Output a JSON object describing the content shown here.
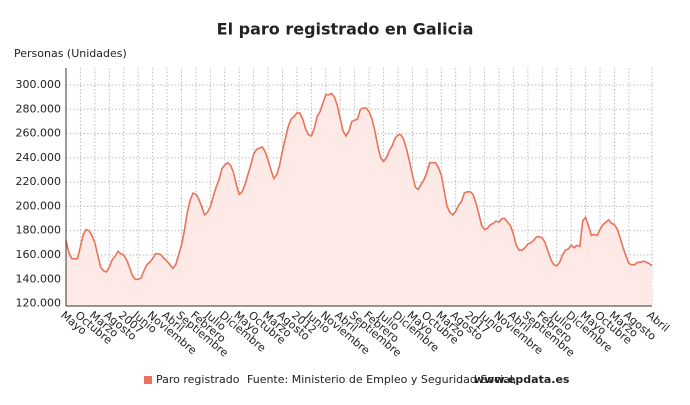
{
  "chart_data": {
    "type": "line",
    "title": "El paro registrado en Galicia",
    "y_axis_title": "Personas (Unidades)",
    "source": "Fuente: Ministerio de Empleo y Seguridad Social,",
    "source_site": "www.epdata.es",
    "grid": true,
    "ylim": [
      118000,
      314000
    ],
    "yticks": [
      {
        "value": 120000,
        "label": "120.000"
      },
      {
        "value": 140000,
        "label": "140.000"
      },
      {
        "value": 160000,
        "label": "160.000"
      },
      {
        "value": 180000,
        "label": "180.000"
      },
      {
        "value": 200000,
        "label": "200.000"
      },
      {
        "value": 220000,
        "label": "220.000"
      },
      {
        "value": 240000,
        "label": "240.000"
      },
      {
        "value": 260000,
        "label": "260.000"
      },
      {
        "value": 280000,
        "label": "280.000"
      },
      {
        "value": 300000,
        "label": "300.000"
      }
    ],
    "categories": [
      "Mayo",
      null,
      null,
      null,
      null,
      "Octubre",
      null,
      null,
      null,
      null,
      "Marzo",
      null,
      null,
      null,
      null,
      "Agosto",
      null,
      null,
      null,
      null,
      "2007",
      null,
      null,
      null,
      null,
      "Junio",
      null,
      null,
      null,
      null,
      "Noviembre",
      null,
      null,
      null,
      null,
      "Abril",
      null,
      null,
      null,
      null,
      "Septiembre",
      null,
      null,
      null,
      null,
      "Febrero",
      null,
      null,
      null,
      null,
      "Julio",
      null,
      null,
      null,
      null,
      "Diciembre",
      null,
      null,
      null,
      null,
      "Mayo",
      null,
      null,
      null,
      null,
      "Octubre",
      null,
      null,
      null,
      null,
      "Marzo",
      null,
      null,
      null,
      null,
      "Agosto",
      null,
      null,
      null,
      null,
      "2012",
      null,
      null,
      null,
      null,
      "Junio",
      null,
      null,
      null,
      null,
      "Noviembre",
      null,
      null,
      null,
      null,
      "Abril",
      null,
      null,
      null,
      null,
      "Septiembre",
      null,
      null,
      null,
      null,
      "Febrero",
      null,
      null,
      null,
      null,
      "Julio",
      null,
      null,
      null,
      null,
      "Diciembre",
      null,
      null,
      null,
      null,
      "Mayo",
      null,
      null,
      null,
      null,
      "Octubre",
      null,
      null,
      null,
      null,
      "Marzo",
      null,
      null,
      null,
      null,
      "Agosto",
      null,
      null,
      null,
      null,
      "2017",
      null,
      null,
      null,
      null,
      "Junio",
      null,
      null,
      null,
      null,
      "Noviembre",
      null,
      null,
      null,
      null,
      "Abril",
      null,
      null,
      null,
      null,
      "Septiembre",
      null,
      null,
      null,
      null,
      "Febrero",
      null,
      null,
      null,
      null,
      "Julio",
      null,
      null,
      null,
      null,
      "Diciembre",
      null,
      null,
      null,
      null,
      "Mayo",
      null,
      null,
      null,
      null,
      "Octubre",
      null,
      null,
      null,
      null,
      "Marzo",
      null,
      null,
      null,
      null,
      "Agosto",
      null,
      null,
      null,
      null,
      null,
      null,
      null,
      "Abril"
    ],
    "series": [
      {
        "name": "Paro registrado",
        "color": "#e8735a",
        "fill": "#fdeae6",
        "values": [
          172000,
          162000,
          157000,
          157000,
          157000,
          167000,
          177000,
          181000,
          180000,
          176000,
          170000,
          160000,
          150000,
          147000,
          146000,
          150000,
          156000,
          159000,
          163000,
          161000,
          160000,
          156000,
          150000,
          143000,
          140000,
          140000,
          141000,
          147000,
          152000,
          154000,
          157000,
          161000,
          161000,
          160000,
          157000,
          155000,
          152000,
          149000,
          152000,
          160000,
          168000,
          180000,
          195000,
          205000,
          211000,
          210000,
          206000,
          200000,
          193000,
          195000,
          200000,
          208000,
          216000,
          222000,
          231000,
          234000,
          236000,
          234000,
          228000,
          218000,
          210000,
          212000,
          218000,
          226000,
          234000,
          243000,
          247000,
          248000,
          249000,
          245000,
          238000,
          230000,
          223000,
          226000,
          234000,
          246000,
          256000,
          266000,
          272000,
          274000,
          277000,
          277000,
          272000,
          264000,
          259000,
          258000,
          264000,
          274000,
          278000,
          285000,
          292000,
          292000,
          293000,
          290000,
          283000,
          272000,
          262000,
          258000,
          262000,
          270000,
          271000,
          272000,
          280000,
          281000,
          281000,
          278000,
          272000,
          262000,
          250000,
          240000,
          237000,
          240000,
          246000,
          250000,
          256000,
          259000,
          259000,
          255000,
          247000,
          237000,
          226000,
          216000,
          214000,
          218000,
          222000,
          228000,
          236000,
          236000,
          236000,
          232000,
          226000,
          213000,
          200000,
          195000,
          193000,
          196000,
          201000,
          204000,
          211000,
          212000,
          212000,
          210000,
          203000,
          194000,
          184000,
          181000,
          182000,
          185000,
          186000,
          188000,
          187000,
          190000,
          190000,
          187000,
          184000,
          177000,
          168000,
          164000,
          164000,
          166000,
          169000,
          170000,
          172000,
          175000,
          175000,
          174000,
          170000,
          163000,
          156000,
          152000,
          151000,
          154000,
          160000,
          164000,
          165000,
          168000,
          166000,
          168000,
          167000,
          188000,
          191000,
          184000,
          176000,
          177000,
          176000,
          181000,
          185000,
          187000,
          189000,
          186000,
          185000,
          181000,
          174000,
          166000,
          159000,
          153000,
          152000,
          152000,
          154000,
          154000,
          155000,
          154000,
          153000,
          151000
        ]
      }
    ]
  }
}
